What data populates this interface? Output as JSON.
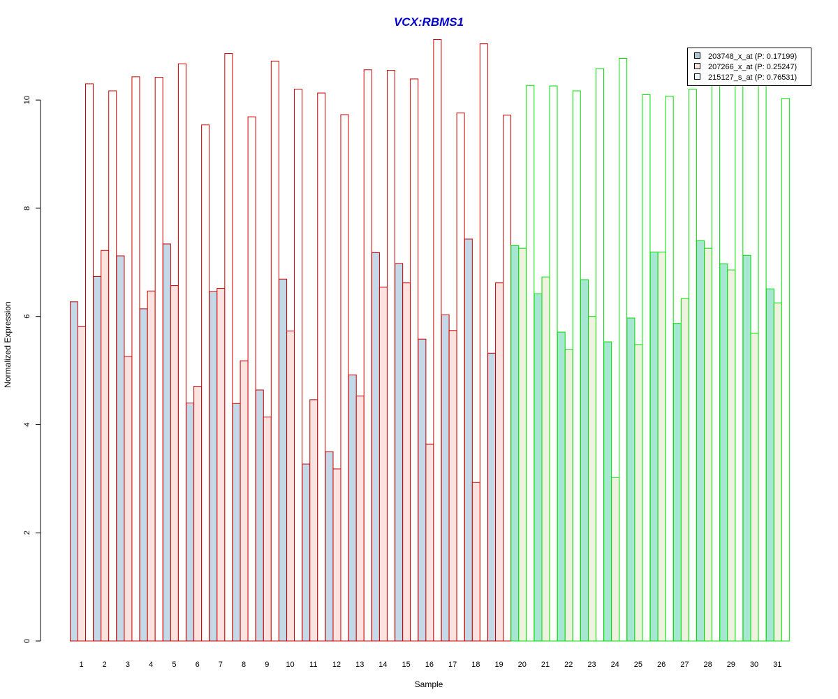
{
  "chart_data": {
    "type": "bar",
    "title": "VCX:RBMS1",
    "xlabel": "Sample",
    "ylabel": "Normalized Expression",
    "ylim": [
      0,
      11.1
    ],
    "yticks": [
      "0",
      "2",
      "4",
      "6",
      "8",
      "10"
    ],
    "categories": [
      "1",
      "2",
      "3",
      "4",
      "5",
      "6",
      "7",
      "8",
      "9",
      "10",
      "11",
      "12",
      "13",
      "14",
      "15",
      "16",
      "17",
      "18",
      "19",
      "20",
      "21",
      "22",
      "23",
      "24",
      "25",
      "26",
      "27",
      "28",
      "29",
      "30",
      "31"
    ],
    "group_split_after": 19,
    "group_colors": {
      "group1_border": "#cc0000",
      "group2_border": "#00dd00"
    },
    "series": [
      {
        "name": "203748_x_at (P: 0.17199)",
        "fill": "#c3d9e8",
        "fill_group2": "#a6e6d2",
        "values": [
          6.27,
          6.74,
          7.12,
          6.14,
          7.34,
          4.4,
          6.46,
          4.39,
          4.64,
          6.69,
          3.27,
          3.5,
          4.92,
          7.18,
          6.98,
          5.58,
          6.03,
          7.43,
          5.32,
          7.31,
          6.42,
          5.71,
          6.68,
          5.53,
          5.97,
          7.19,
          5.87,
          7.4,
          6.97,
          7.13,
          6.51
        ]
      },
      {
        "name": "207266_x_at (P: 0.25247)",
        "fill": "#fde3e0",
        "fill_group2": "#eff2df",
        "values": [
          5.81,
          7.22,
          5.26,
          6.47,
          6.57,
          4.71,
          6.52,
          5.18,
          4.14,
          5.73,
          4.46,
          3.18,
          4.53,
          6.54,
          6.62,
          3.64,
          5.74,
          2.93,
          6.62,
          7.26,
          6.73,
          5.39,
          6.0,
          3.02,
          5.48,
          7.19,
          6.33,
          7.26,
          6.86,
          5.69,
          6.25
        ]
      },
      {
        "name": "215127_s_at (P: 0.76531)",
        "fill": "#ffffff",
        "fill_group2": "#ffffff",
        "values": [
          10.3,
          10.17,
          10.43,
          10.42,
          10.67,
          9.54,
          10.86,
          9.69,
          10.72,
          10.2,
          10.13,
          9.73,
          10.56,
          10.55,
          10.39,
          11.12,
          9.76,
          11.04,
          9.72,
          10.27,
          10.26,
          10.17,
          10.58,
          10.77,
          10.1,
          10.07,
          10.2,
          10.3,
          10.32,
          10.34,
          10.03
        ]
      }
    ],
    "legend": {
      "position": "top-right",
      "items": [
        {
          "label": "203748_x_at (P: 0.17199)",
          "swatch": "#a6c7d9"
        },
        {
          "label": "207266_x_at (P: 0.25247)",
          "swatch": "#fde3e0"
        },
        {
          "label": "215127_s_at (P: 0.76531)",
          "swatch": "#e8f6fc"
        }
      ]
    },
    "title_color": "#0000cc",
    "grid": false
  }
}
